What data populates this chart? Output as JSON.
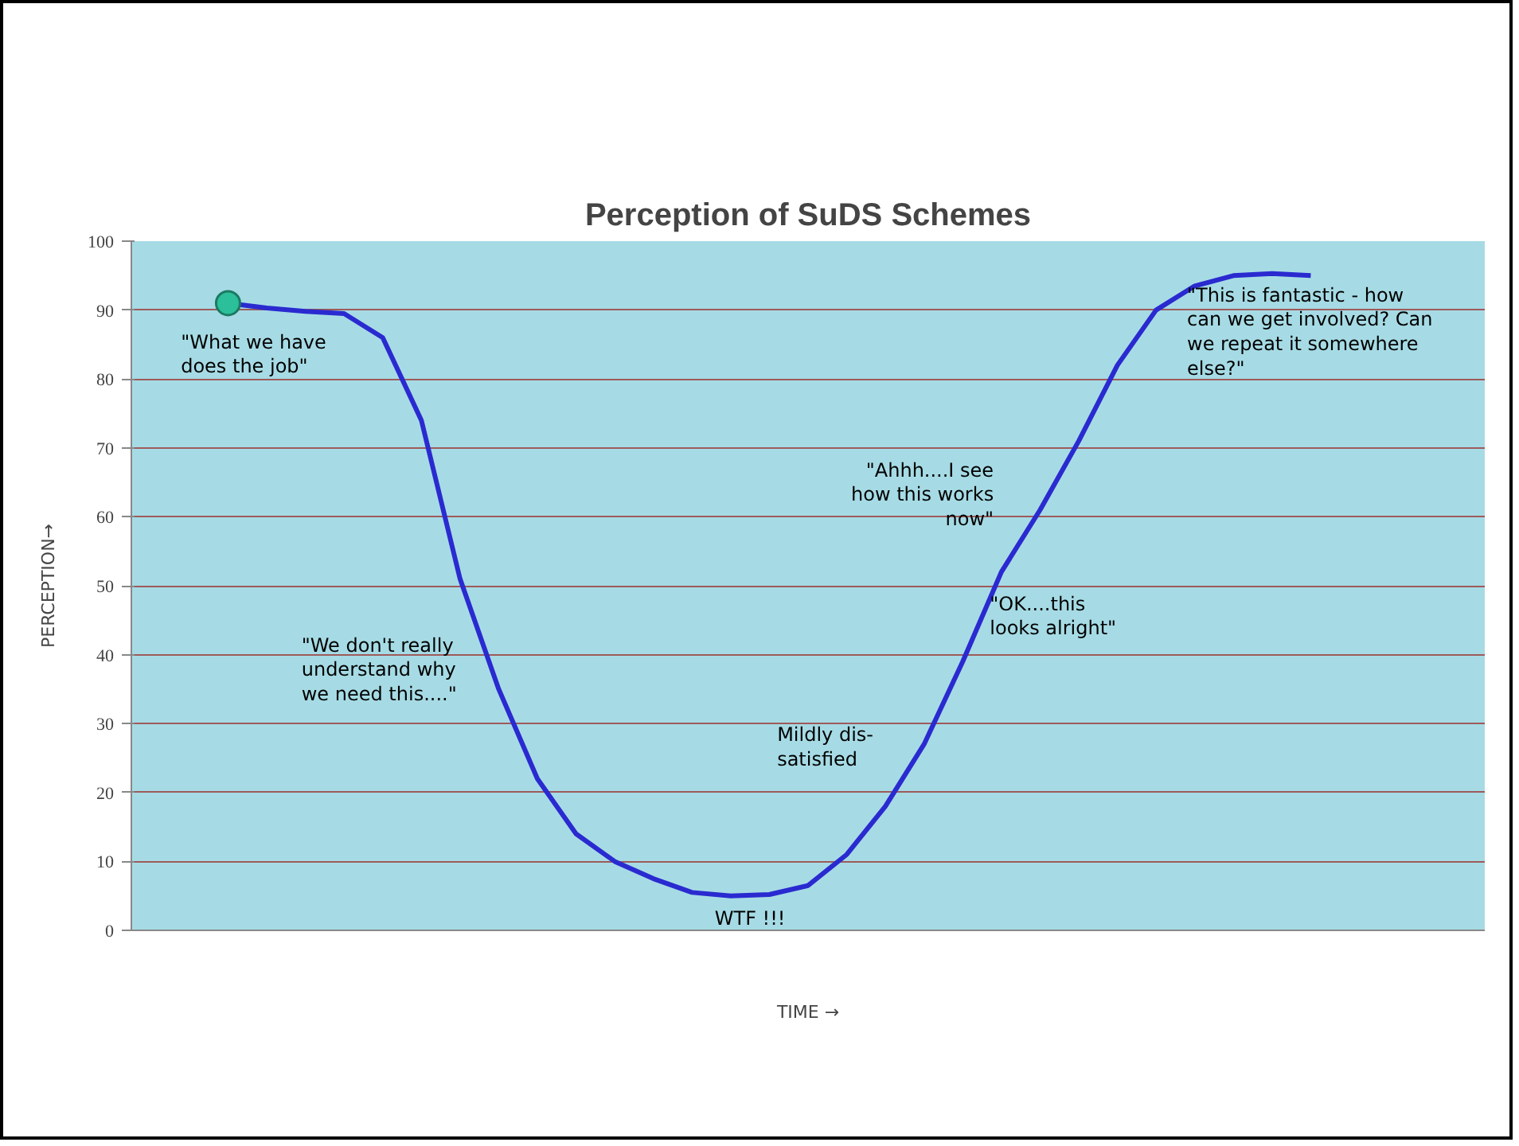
{
  "chart_data": {
    "type": "line",
    "title": "Perception of SuDS Schemes",
    "xlabel": "TIME →",
    "ylabel": "PERCEPTION→",
    "categories": [
      null,
      null,
      null,
      null,
      null,
      null,
      null,
      null,
      null,
      null,
      null,
      null,
      null,
      null,
      null,
      null,
      null,
      null,
      null,
      null,
      null,
      null,
      null,
      null,
      null,
      null,
      null,
      null,
      null,
      null,
      null,
      null,
      null,
      null,
      null
    ],
    "ylim": [
      0,
      100
    ],
    "yticks": [
      0,
      10,
      20,
      30,
      40,
      50,
      60,
      70,
      80,
      90,
      100
    ],
    "grid": "y",
    "series": [
      {
        "color": "#2a2ad0",
        "values": [
          null,
          null,
          91,
          90.3,
          89.8,
          89.5,
          86,
          74,
          51,
          35,
          22,
          14,
          10,
          7.5,
          5.5,
          5,
          5.2,
          6.5,
          11,
          18,
          27,
          39,
          52,
          61,
          71,
          82,
          90,
          93.5,
          95,
          95.3,
          95,
          null,
          null,
          null,
          null
        ]
      },
      {
        "type": "scatter",
        "marker": "circle",
        "color": "#2bbf9a",
        "values": [
          null,
          null,
          91,
          null,
          null,
          null,
          null,
          null,
          null,
          null,
          null,
          null,
          null,
          null,
          null,
          null,
          null,
          null,
          null,
          null,
          null,
          null,
          null,
          null,
          null,
          null,
          null,
          null,
          null,
          null,
          null,
          null,
          null,
          null,
          null
        ]
      }
    ],
    "annotations": [
      "\"What we have\ndoes the job\"",
      "\"We don't really\nunderstand why\nwe need this....\"",
      "WTF !!!",
      "Mildly dis-\nsatisfied",
      "\"Ahhh....I see\nhow this works\nnow\"",
      "\"OK....this\nlooks alright\"",
      "\"This is fantastic - how\ncan we get involved? Can\nwe repeat it somewhere\nelse?\""
    ]
  }
}
